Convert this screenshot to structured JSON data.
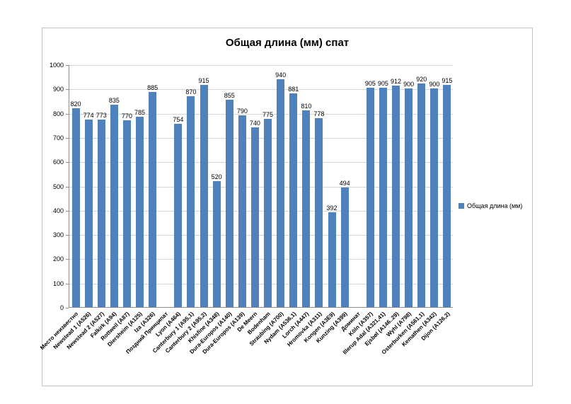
{
  "chart": {
    "frame_border_color": "#c3c3c3",
    "background": "#ffffff"
  },
  "chart_data": {
    "type": "bar",
    "title": "Общая длина (мм) спат",
    "series_name": "Общая длина (мм)",
    "bar_color": "#4f81bd",
    "grid": true,
    "legend_position": "right",
    "ylim": [
      0,
      1000
    ],
    "ytick_step": 100,
    "categories": [
      "Место неизвестно",
      "Newstead 1 (A526)",
      "Newstead 2 (A527)",
      "Falkirk (A94)",
      "Rottweil (A87)",
      "Diersheim (A125)",
      "Iza (A326)",
      "Поздний Принципат",
      "Lyon (A464)",
      "Canterbury 1 (A95,1)",
      "Canterbury 2 (A95,2)",
      "Khisfine (A348)",
      "Dura-Europos (A140)",
      "Dura-Europos (A139)",
      "De Meern",
      "Bodenham",
      "Straubing (A700)",
      "Nydam (A536,1)",
      "Lorch (A447)",
      "Hromovka (A311)",
      "Kongen (A3E9)",
      "Kunzing (A399)",
      "Доминат",
      "Köln (A357)",
      "Illerup Adal (A321,41)",
      "Ejsbøl (A146..29)",
      "Wyhl (A798)",
      "Osterburken (A561,1)",
      "Kemathen (A342)",
      "Dijon (A126,2)"
    ],
    "values": [
      820,
      774,
      773,
      835,
      770,
      785,
      885,
      null,
      754,
      870,
      915,
      520,
      855,
      790,
      740,
      775,
      940,
      881,
      810,
      778,
      392,
      494,
      null,
      905,
      905,
      912,
      900,
      920,
      900,
      915
    ]
  }
}
